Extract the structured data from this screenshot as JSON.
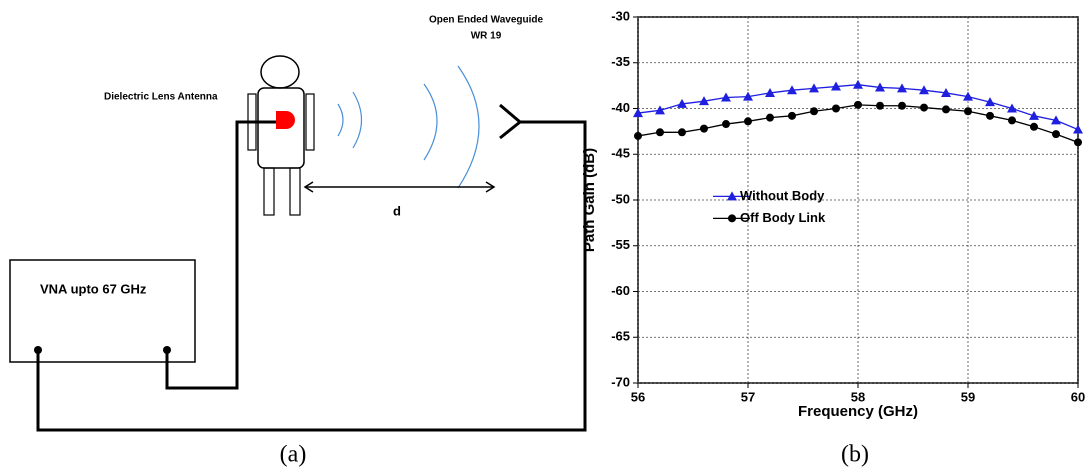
{
  "diagram": {
    "instrument": "VNA upto 67 GHz",
    "antenna": "Dielectric Lens Antenna",
    "waveguide": [
      "Open Ended Waveguide",
      "WR 19"
    ],
    "distance": "d"
  },
  "captions": [
    "(a)",
    "(b)"
  ],
  "chart_data": {
    "type": "line",
    "x_label": "Frequency (GHz)",
    "y_label": "Path Gain (dB)",
    "x": [
      56,
      56.2,
      56.4,
      56.6,
      56.8,
      57,
      57.2,
      57.4,
      57.6,
      57.8,
      58,
      58.2,
      58.4,
      58.6,
      58.8,
      59,
      59.2,
      59.4,
      59.6,
      59.8,
      60
    ],
    "series": [
      {
        "name": "Without Body",
        "color": "#1f1fe0",
        "marker": "triangle",
        "values": [
          -40.5,
          -40.2,
          -39.5,
          -39.2,
          -38.8,
          -38.7,
          -38.3,
          -38,
          -37.8,
          -37.6,
          -37.4,
          -37.7,
          -37.8,
          -38,
          -38.3,
          -38.7,
          -39.3,
          -40,
          -40.8,
          -41.3,
          -42.3
        ]
      },
      {
        "name": "Off Body Link",
        "color": "#000000",
        "marker": "circle",
        "values": [
          -43,
          -42.6,
          -42.6,
          -42.2,
          -41.7,
          -41.4,
          -41,
          -40.8,
          -40.3,
          -40,
          -39.6,
          -39.7,
          -39.7,
          -39.9,
          -40.1,
          -40.3,
          -40.8,
          -41.3,
          -42,
          -42.8,
          -43.7
        ]
      }
    ],
    "xlim": [
      56,
      60
    ],
    "xticks": [
      56,
      57,
      58,
      59,
      60
    ],
    "ylim": [
      -70,
      -30
    ],
    "yticks": [
      -70,
      -65,
      -60,
      -55,
      -50,
      -45,
      -40,
      -35,
      -30
    ],
    "grid": true,
    "legend": "center-left"
  }
}
